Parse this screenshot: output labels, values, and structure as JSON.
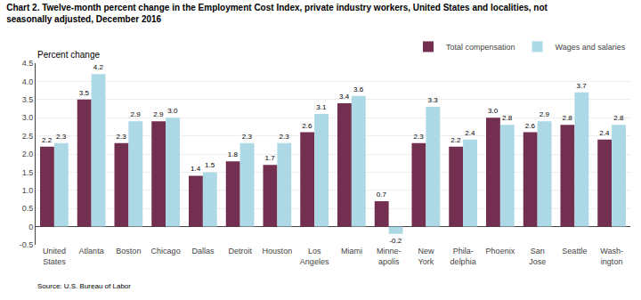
{
  "chart_data": {
    "type": "bar",
    "title": "Chart 2. Twelve-month percent change in the Employment Cost Index, private industry workers, United States and localities, not\nseasonally adjusted, December 2016",
    "ylabel": "Percent change",
    "source": "Source: U.S. Bureau of Labor",
    "categories": [
      "United\nStates",
      "Atlanta",
      "Boston",
      "Chicago",
      "Dallas",
      "Detroit",
      "Houston",
      "Los\nAngeles",
      "Miami",
      "Minne-\napolis",
      "New\nYork",
      "Phila-\ndelphia",
      "Phoenix",
      "San\nJose",
      "Seattle",
      "Wash-\nington"
    ],
    "series": [
      {
        "name": "Total compensation",
        "color": "#722F4F",
        "values": [
          2.2,
          3.5,
          2.3,
          2.9,
          1.4,
          1.8,
          1.7,
          2.6,
          3.4,
          0.7,
          2.3,
          2.2,
          3.0,
          2.6,
          2.8,
          2.4
        ],
        "value_labels": [
          "2.2",
          "3.5",
          "2.3",
          "2.9",
          "1.4",
          "1.8",
          "1.7",
          "2.6",
          "3.4",
          "0.7",
          "2.3",
          "2.2",
          "3.0",
          "2.6",
          "2.8",
          "2.4"
        ]
      },
      {
        "name": "Wages and salaries",
        "color": "#ADD8E6",
        "values": [
          2.3,
          4.2,
          2.9,
          3.0,
          1.5,
          2.3,
          2.3,
          3.1,
          3.6,
          -0.2,
          3.3,
          2.4,
          2.8,
          2.9,
          3.7,
          2.8
        ],
        "value_labels": [
          "2.3",
          "4.2",
          "2.9",
          "3.0",
          "1.5",
          "2.3",
          "2.3",
          "3.1",
          "3.6",
          "-0.2",
          "3.3",
          "2.4",
          "2.8",
          "2.9",
          "3.7",
          "2.8"
        ]
      }
    ],
    "ylim": [
      -0.5,
      4.5
    ],
    "yticks": [
      -0.5,
      0,
      0.5,
      {
        "value": 1,
        "label": "1.0"
      },
      1.5,
      {
        "value": 2,
        "label": "2.0"
      },
      2.5,
      {
        "value": 3,
        "label": "3.0"
      },
      3.5,
      {
        "value": 4,
        "label": "4.0"
      },
      4.5
    ],
    "grid": true,
    "legend": "upper right",
    "data_labels": true
  }
}
